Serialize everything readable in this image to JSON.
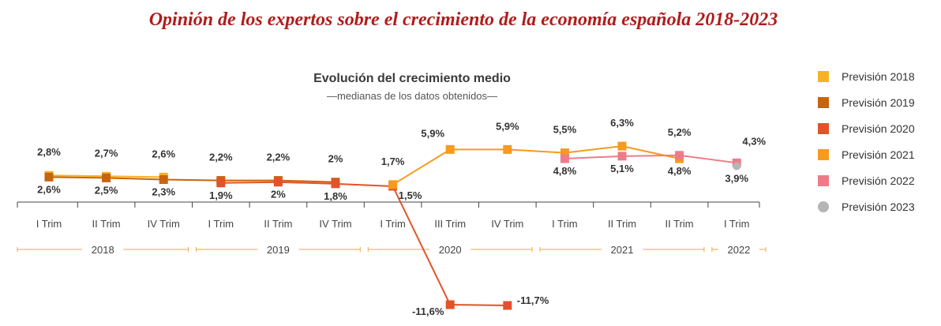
{
  "page_title": "Opinión de los expertos sobre el crecimiento de la economía española 2018-2023",
  "chart_data": {
    "type": "line",
    "title": "Evolución del crecimiento medio",
    "subtitle": "—medianas de los datos obtenidos—",
    "categories": [
      "I Trim",
      "II Trim",
      "IV Trim",
      "I Trim",
      "II Trim",
      "IV Trim",
      "I Trim",
      "III Trim",
      "IV Trim",
      "I Trim",
      "II Trim",
      "II Trim",
      "I Trim"
    ],
    "years": [
      {
        "label": "2018",
        "start": 0,
        "end": 2
      },
      {
        "label": "2019",
        "start": 3,
        "end": 5
      },
      {
        "label": "2020",
        "start": 6,
        "end": 8
      },
      {
        "label": "2021",
        "start": 9,
        "end": 11
      },
      {
        "label": "2022",
        "start": 12,
        "end": 12
      }
    ],
    "series": [
      {
        "name": "Previsión 2018",
        "color": "#f7b224",
        "marker": "square",
        "points": [
          {
            "i": 0,
            "v": 2.8,
            "label": "2,8%",
            "pos": "above"
          },
          {
            "i": 1,
            "v": 2.7,
            "label": "2,7%",
            "pos": "above"
          },
          {
            "i": 2,
            "v": 2.6,
            "label": "2,6%",
            "pos": "above"
          }
        ]
      },
      {
        "name": "Previsión 2019",
        "color": "#c9640e",
        "marker": "square",
        "points": [
          {
            "i": 0,
            "v": 2.6,
            "label": "2,6%",
            "pos": "below"
          },
          {
            "i": 1,
            "v": 2.5,
            "label": "2,5%",
            "pos": "below"
          },
          {
            "i": 2,
            "v": 2.3,
            "label": "2,3%",
            "pos": "below"
          },
          {
            "i": 3,
            "v": 2.2,
            "label": "2,2%",
            "pos": "above"
          },
          {
            "i": 4,
            "v": 2.2,
            "label": "2,2%",
            "pos": "above"
          },
          {
            "i": 5,
            "v": 2.0,
            "label": "2%",
            "pos": "above"
          }
        ]
      },
      {
        "name": "Previsión 2020",
        "color": "#e2532a",
        "marker": "square",
        "points": [
          {
            "i": 3,
            "v": 1.9,
            "label": "1,9%",
            "pos": "below"
          },
          {
            "i": 4,
            "v": 2.0,
            "label": "2%",
            "pos": "below"
          },
          {
            "i": 5,
            "v": 1.8,
            "label": "1,8%",
            "pos": "below"
          },
          {
            "i": 6,
            "v": 1.5,
            "label": "1,5%",
            "pos": "below-right"
          },
          {
            "i": 7,
            "v": -11.6,
            "label": "-11,6%",
            "pos": "below-left"
          },
          {
            "i": 8,
            "v": -11.7,
            "label": "-11,7%",
            "pos": "right"
          }
        ]
      },
      {
        "name": "Previsión 2021",
        "color": "#f79a1e",
        "marker": "square",
        "points": [
          {
            "i": 6,
            "v": 1.7,
            "label": "1,7%",
            "pos": "above"
          },
          {
            "i": 7,
            "v": 5.9,
            "label": "5,9%",
            "pos": "above-left"
          },
          {
            "i": 8,
            "v": 5.9,
            "label": "5,9%",
            "pos": "above"
          },
          {
            "i": 9,
            "v": 5.5,
            "label": "5,5%",
            "pos": "above"
          },
          {
            "i": 10,
            "v": 6.3,
            "label": "6,3%",
            "pos": "above"
          },
          {
            "i": 11,
            "v": 4.8,
            "label": "4,8%",
            "pos": "below"
          }
        ]
      },
      {
        "name": "Previsión 2022",
        "color": "#ee7b8a",
        "marker": "square",
        "points": [
          {
            "i": 9,
            "v": 4.8,
            "label": "4,8%",
            "pos": "below"
          },
          {
            "i": 10,
            "v": 5.1,
            "label": "5,1%",
            "pos": "below"
          },
          {
            "i": 11,
            "v": 5.2,
            "label": "5,2%",
            "pos": "above"
          },
          {
            "i": 12,
            "v": 4.3,
            "label": "",
            "pos": "none"
          }
        ]
      },
      {
        "name": "Previsión 2023",
        "color": "#b5b5b5",
        "marker": "circle",
        "points": [
          {
            "i": 12,
            "v": 3.9,
            "label": "3,9%",
            "pos": "below"
          }
        ]
      }
    ],
    "extra_labels": [
      {
        "i": 12,
        "v": 4.3,
        "label": "4,3%",
        "pos": "above-right"
      }
    ]
  }
}
